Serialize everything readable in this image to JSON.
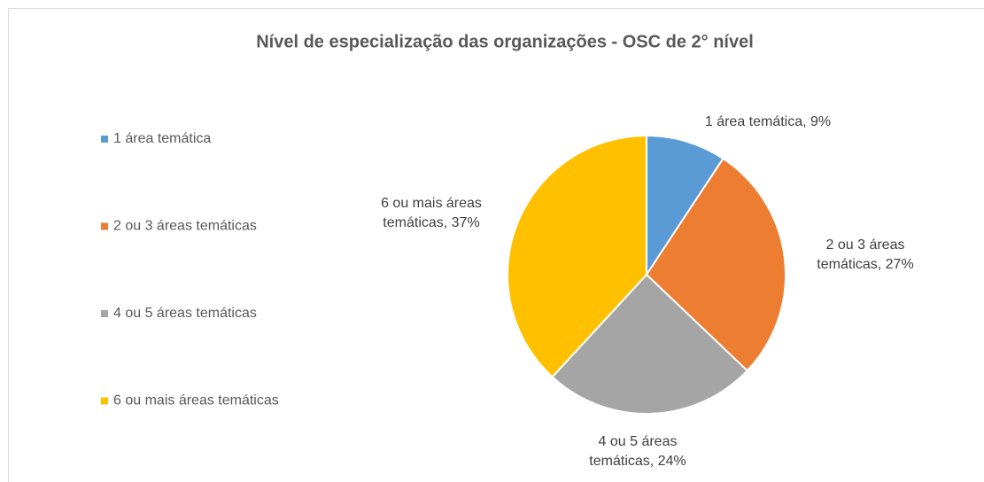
{
  "chart_data": {
    "type": "pie",
    "title": "Nível de especialização das organizações - OSC de 2° nível",
    "categories": [
      "1 área temática",
      "2 ou 3 áreas temáticas",
      "4 ou 5 áreas temáticas",
      "6 ou mais áreas temáticas"
    ],
    "values": [
      9,
      27,
      24,
      37
    ],
    "value_labels": [
      "1 área temática, 9%",
      "2 ou 3 áreas temáticas, 27%",
      "4 ou 5 áreas temáticas, 24%",
      "6 ou mais áreas temáticas, 37%"
    ],
    "colors": [
      "#5b9bd5",
      "#ed7d31",
      "#a5a5a5",
      "#ffc000"
    ],
    "legend": "left"
  }
}
